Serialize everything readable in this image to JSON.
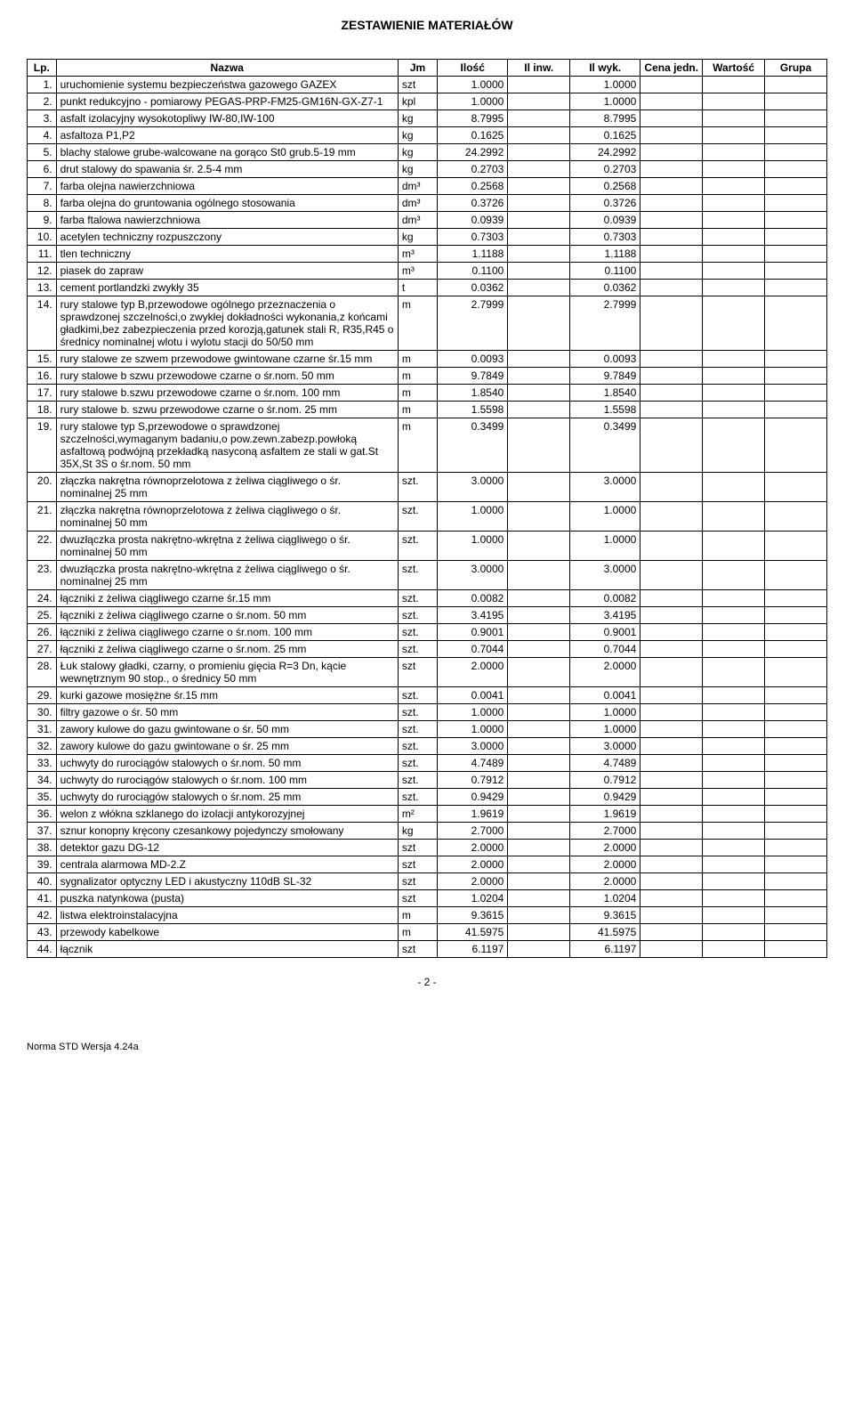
{
  "title": "ZESTAWIENIE MATERIAŁÓW",
  "headers": {
    "lp": "Lp.",
    "nazwa": "Nazwa",
    "jm": "Jm",
    "ilosc": "Ilość",
    "ilinw": "Il inw.",
    "ilwyk": "Il wyk.",
    "cena": "Cena jedn.",
    "wartosc": "Wartość",
    "grupa": "Grupa"
  },
  "rows": [
    {
      "lp": "1.",
      "nazwa": "uruchomienie systemu bezpieczeństwa gazowego GAZEX",
      "jm": "szt",
      "ilosc": "1.0000",
      "ilwyk": "1.0000"
    },
    {
      "lp": "2.",
      "nazwa": "punkt redukcyjno - pomiarowy PEGAS-PRP-FM25-GM16N-GX-Z7-1",
      "jm": "kpl",
      "ilosc": "1.0000",
      "ilwyk": "1.0000"
    },
    {
      "lp": "3.",
      "nazwa": "asfalt izolacyjny wysokotopliwy IW-80,IW-100",
      "jm": "kg",
      "ilosc": "8.7995",
      "ilwyk": "8.7995"
    },
    {
      "lp": "4.",
      "nazwa": "asfaltoza P1,P2",
      "jm": "kg",
      "ilosc": "0.1625",
      "ilwyk": "0.1625"
    },
    {
      "lp": "5.",
      "nazwa": "blachy stalowe grube-walcowane na gorąco St0 grub.5-19 mm",
      "jm": "kg",
      "ilosc": "24.2992",
      "ilwyk": "24.2992"
    },
    {
      "lp": "6.",
      "nazwa": "drut stalowy do spawania śr. 2.5-4 mm",
      "jm": "kg",
      "ilosc": "0.2703",
      "ilwyk": "0.2703"
    },
    {
      "lp": "7.",
      "nazwa": "farba olejna nawierzchniowa",
      "jm": "dm3",
      "ilosc": "0.2568",
      "ilwyk": "0.2568"
    },
    {
      "lp": "8.",
      "nazwa": "farba olejna do gruntowania ogólnego stosowania",
      "jm": "dm3",
      "ilosc": "0.3726",
      "ilwyk": "0.3726"
    },
    {
      "lp": "9.",
      "nazwa": "farba ftalowa nawierzchniowa",
      "jm": "dm3",
      "ilosc": "0.0939",
      "ilwyk": "0.0939"
    },
    {
      "lp": "10.",
      "nazwa": "acetylen techniczny rozpuszczony",
      "jm": "kg",
      "ilosc": "0.7303",
      "ilwyk": "0.7303"
    },
    {
      "lp": "11.",
      "nazwa": "tlen techniczny",
      "jm": "m3",
      "ilosc": "1.1188",
      "ilwyk": "1.1188"
    },
    {
      "lp": "12.",
      "nazwa": "piasek do zapraw",
      "jm": "m3",
      "ilosc": "0.1100",
      "ilwyk": "0.1100"
    },
    {
      "lp": "13.",
      "nazwa": "cement portlandzki zwykły 35",
      "jm": "t",
      "ilosc": "0.0362",
      "ilwyk": "0.0362"
    },
    {
      "lp": "14.",
      "nazwa": "rury stalowe typ B,przewodowe ogólnego przeznaczenia o sprawdzonej szczelności,o zwykłej dokładności wykonania,z końcami gładkimi,bez zabezpieczenia przed korozją,gatunek stali R, R35,R45 o średnicy nominalnej wlotu i wylotu stacji do 50/50 mm",
      "jm": "m",
      "ilosc": "2.7999",
      "ilwyk": "2.7999"
    },
    {
      "lp": "15.",
      "nazwa": "rury stalowe ze szwem przewodowe gwintowane czarne śr.15 mm",
      "jm": "m",
      "ilosc": "0.0093",
      "ilwyk": "0.0093"
    },
    {
      "lp": "16.",
      "nazwa": "rury stalowe b szwu przewodowe czarne o śr.nom. 50 mm",
      "jm": "m",
      "ilosc": "9.7849",
      "ilwyk": "9.7849"
    },
    {
      "lp": "17.",
      "nazwa": "rury stalowe b.szwu przewodowe czarne o śr.nom. 100 mm",
      "jm": "m",
      "ilosc": "1.8540",
      "ilwyk": "1.8540"
    },
    {
      "lp": "18.",
      "nazwa": "rury stalowe b. szwu przewodowe czarne o śr.nom. 25 mm",
      "jm": "m",
      "ilosc": "1.5598",
      "ilwyk": "1.5598"
    },
    {
      "lp": "19.",
      "nazwa": "rury stalowe typ S,przewodowe o sprawdzonej szczelności,wymaganym badaniu,o pow.zewn.zabezp.powłoką asfaltową podwójną przekładką nasyconą asfaltem ze stali w gat.St 35X,St 3S o śr.nom. 50 mm",
      "jm": "m",
      "ilosc": "0.3499",
      "ilwyk": "0.3499"
    },
    {
      "lp": "20.",
      "nazwa": "złączka nakrętna równoprzelotowa z żeliwa ciągliwego o śr. nominalnej 25 mm",
      "jm": "szt.",
      "ilosc": "3.0000",
      "ilwyk": "3.0000"
    },
    {
      "lp": "21.",
      "nazwa": "złączka nakrętna równoprzelotowa z żeliwa ciągliwego o śr. nominalnej 50 mm",
      "jm": "szt.",
      "ilosc": "1.0000",
      "ilwyk": "1.0000"
    },
    {
      "lp": "22.",
      "nazwa": "dwuzłączka prosta nakrętno-wkrętna z żeliwa ciągliwego o śr. nominalnej 50 mm",
      "jm": "szt.",
      "ilosc": "1.0000",
      "ilwyk": "1.0000"
    },
    {
      "lp": "23.",
      "nazwa": "dwuzłączka prosta nakrętno-wkrętna z żeliwa ciągliwego o śr. nominalnej 25 mm",
      "jm": "szt.",
      "ilosc": "3.0000",
      "ilwyk": "3.0000"
    },
    {
      "lp": "24.",
      "nazwa": "łączniki z żeliwa ciągliwego czarne śr.15 mm",
      "jm": "szt.",
      "ilosc": "0.0082",
      "ilwyk": "0.0082"
    },
    {
      "lp": "25.",
      "nazwa": "łączniki z żeliwa ciągliwego czarne o śr.nom. 50 mm",
      "jm": "szt.",
      "ilosc": "3.4195",
      "ilwyk": "3.4195"
    },
    {
      "lp": "26.",
      "nazwa": "łączniki z żeliwa ciągliwego czarne o śr.nom. 100 mm",
      "jm": "szt.",
      "ilosc": "0.9001",
      "ilwyk": "0.9001"
    },
    {
      "lp": "27.",
      "nazwa": "łączniki z żeliwa ciągliwego czarne o śr.nom. 25 mm",
      "jm": "szt.",
      "ilosc": "0.7044",
      "ilwyk": "0.7044"
    },
    {
      "lp": "28.",
      "nazwa": "Łuk stalowy gładki, czarny, o promieniu gięcia R=3 Dn, kącie wewnętrznym 90 stop., o średnicy 50 mm",
      "jm": "szt",
      "ilosc": "2.0000",
      "ilwyk": "2.0000"
    },
    {
      "lp": "29.",
      "nazwa": "kurki gazowe mosiężne śr.15 mm",
      "jm": "szt.",
      "ilosc": "0.0041",
      "ilwyk": "0.0041"
    },
    {
      "lp": "30.",
      "nazwa": "filtry gazowe o śr. 50 mm",
      "jm": "szt.",
      "ilosc": "1.0000",
      "ilwyk": "1.0000"
    },
    {
      "lp": "31.",
      "nazwa": "zawory kulowe do gazu gwintowane o śr. 50 mm",
      "jm": "szt.",
      "ilosc": "1.0000",
      "ilwyk": "1.0000"
    },
    {
      "lp": "32.",
      "nazwa": "zawory kulowe do gazu gwintowane o śr. 25 mm",
      "jm": "szt.",
      "ilosc": "3.0000",
      "ilwyk": "3.0000"
    },
    {
      "lp": "33.",
      "nazwa": "uchwyty do rurociągów stalowych o śr.nom. 50 mm",
      "jm": "szt.",
      "ilosc": "4.7489",
      "ilwyk": "4.7489"
    },
    {
      "lp": "34.",
      "nazwa": "uchwyty do rurociągów stalowych o śr.nom. 100 mm",
      "jm": "szt.",
      "ilosc": "0.7912",
      "ilwyk": "0.7912"
    },
    {
      "lp": "35.",
      "nazwa": "uchwyty do rurociągów stalowych o śr.nom. 25 mm",
      "jm": "szt.",
      "ilosc": "0.9429",
      "ilwyk": "0.9429"
    },
    {
      "lp": "36.",
      "nazwa": "welon z włókna szklanego do izolacji antykorozyjnej",
      "jm": "m2",
      "ilosc": "1.9619",
      "ilwyk": "1.9619"
    },
    {
      "lp": "37.",
      "nazwa": "sznur konopny kręcony czesankowy pojedynczy smołowany",
      "jm": "kg",
      "ilosc": "2.7000",
      "ilwyk": "2.7000"
    },
    {
      "lp": "38.",
      "nazwa": "detektor gazu DG-12",
      "jm": "szt",
      "ilosc": "2.0000",
      "ilwyk": "2.0000"
    },
    {
      "lp": "39.",
      "nazwa": "centrala alarmowa MD-2.Z",
      "jm": "szt",
      "ilosc": "2.0000",
      "ilwyk": "2.0000"
    },
    {
      "lp": "40.",
      "nazwa": "sygnalizator optyczny LED i akustyczny 110dB SL-32",
      "jm": "szt",
      "ilosc": "2.0000",
      "ilwyk": "2.0000"
    },
    {
      "lp": "41.",
      "nazwa": "puszka natynkowa (pusta)",
      "jm": "szt",
      "ilosc": "1.0204",
      "ilwyk": "1.0204"
    },
    {
      "lp": "42.",
      "nazwa": "listwa elektroinstalacyjna",
      "jm": "m",
      "ilosc": "9.3615",
      "ilwyk": "9.3615"
    },
    {
      "lp": "43.",
      "nazwa": "przewody kabelkowe",
      "jm": "m",
      "ilosc": "41.5975",
      "ilwyk": "41.5975"
    },
    {
      "lp": "44.",
      "nazwa": "łącznik",
      "jm": "szt",
      "ilosc": "6.1197",
      "ilwyk": "6.1197"
    }
  ],
  "pagenum": "- 2 -",
  "footer": "Norma STD Wersja 4.24a"
}
